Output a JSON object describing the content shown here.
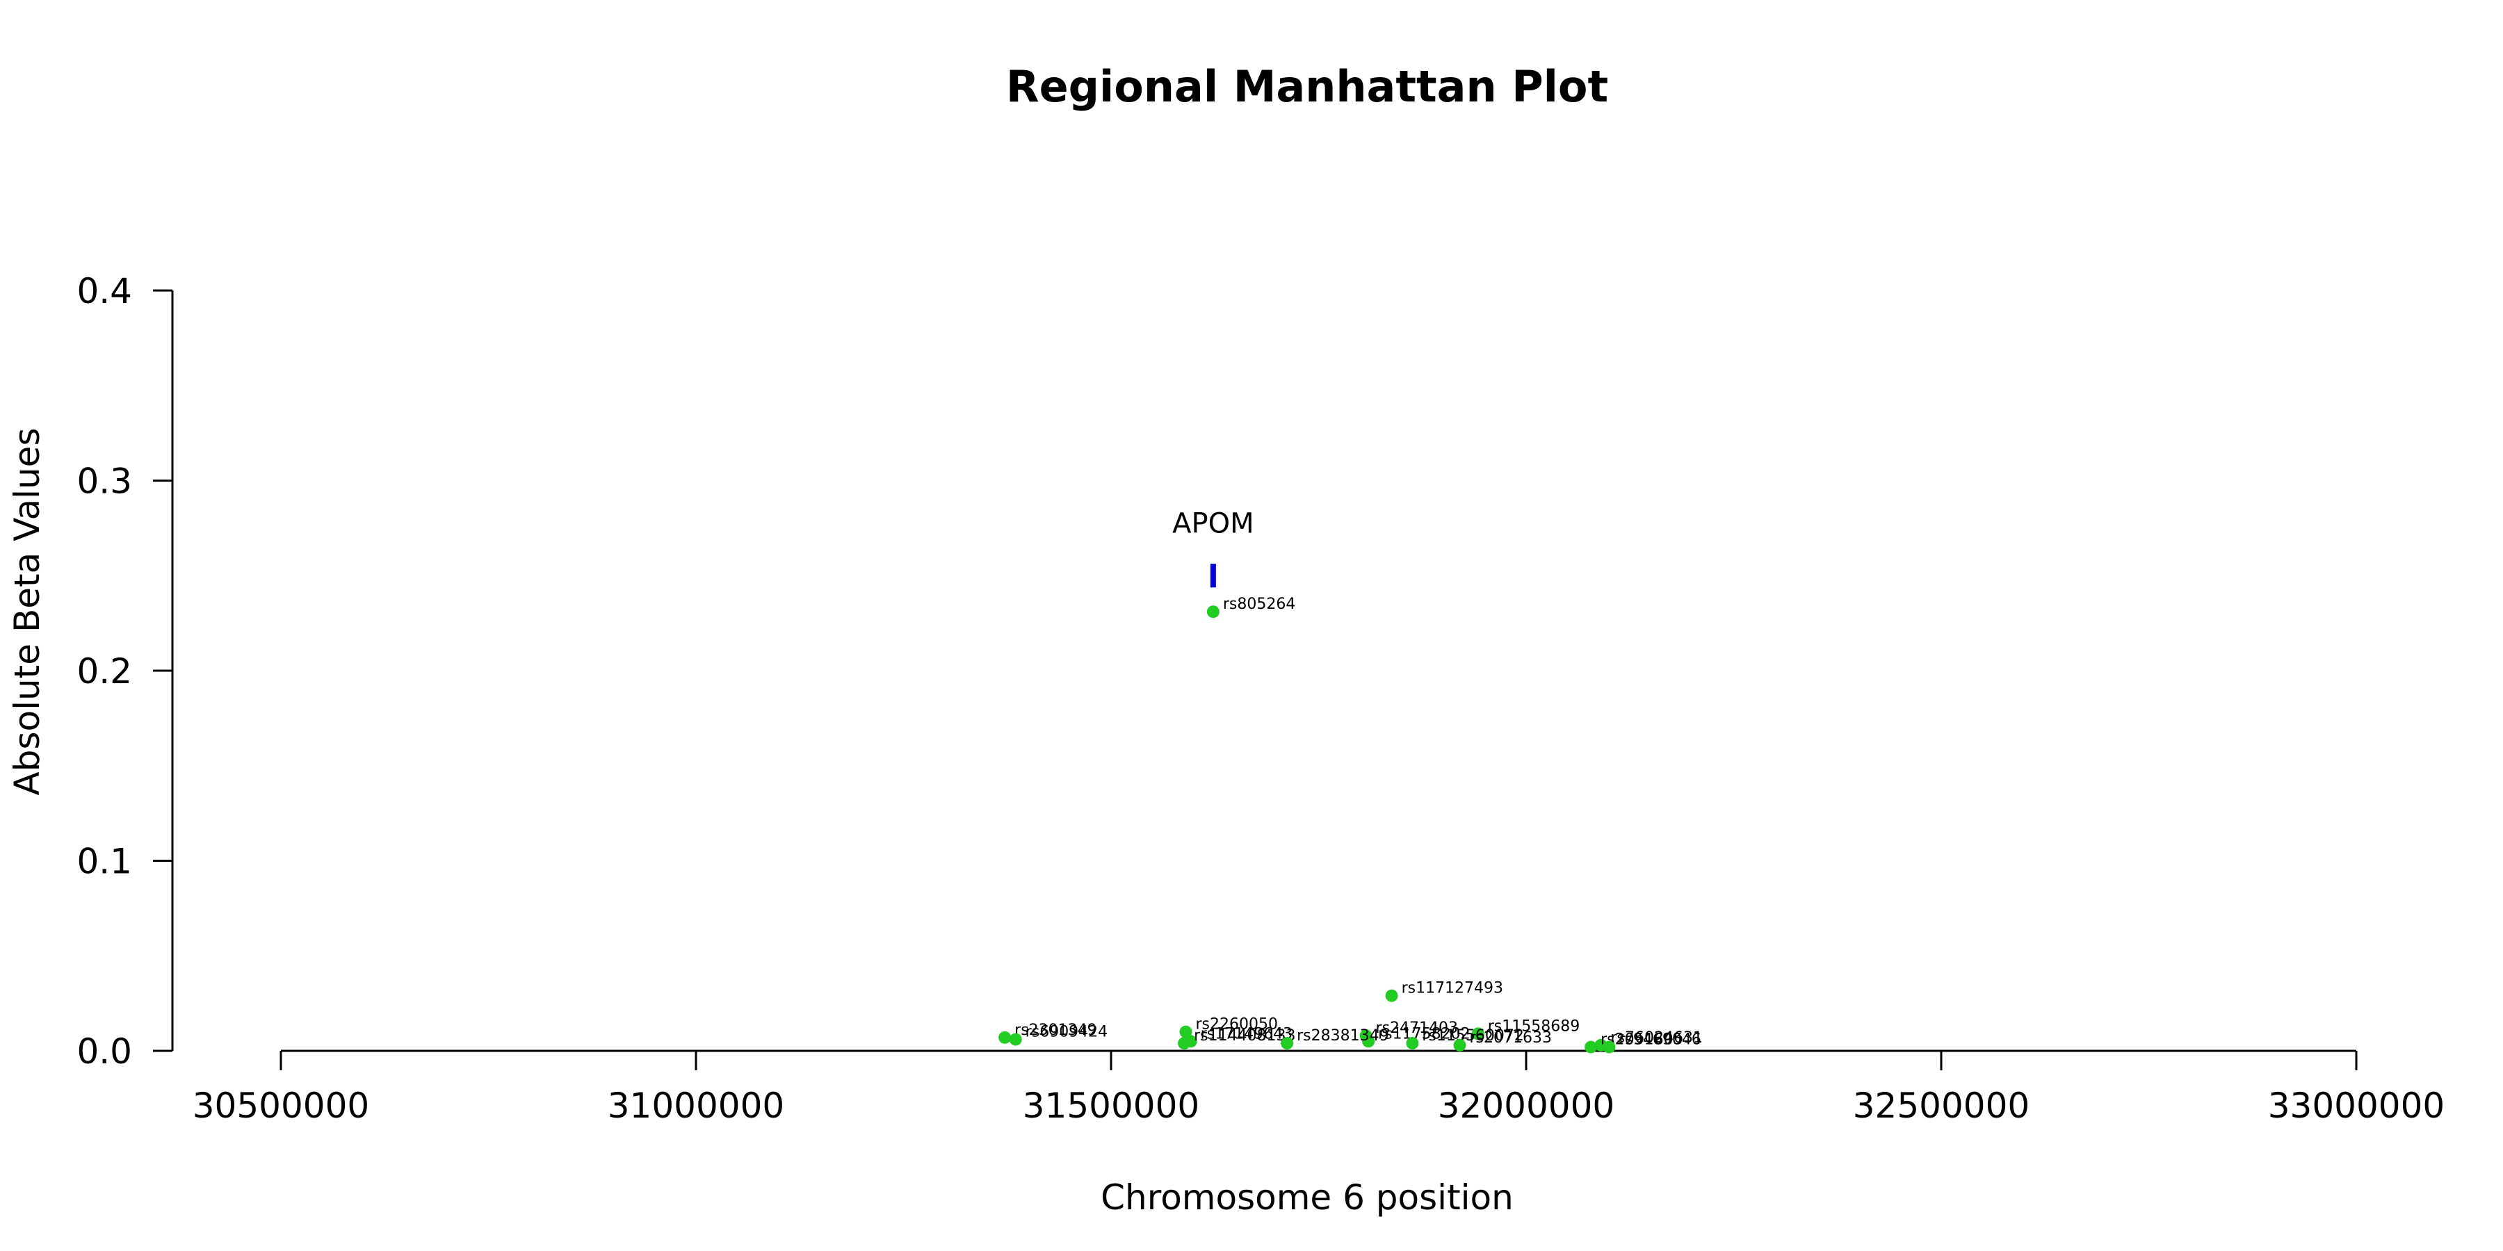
{
  "chart_data": {
    "type": "scatter",
    "title": "Regional Manhattan Plot",
    "xlabel": "Chromosome 6 position",
    "ylabel": "Absolute Beta Values",
    "xlim": [
      30500000,
      33000000
    ],
    "ylim": [
      0,
      0.4
    ],
    "x_ticks": [
      "30500000",
      "31000000",
      "31500000",
      "32000000",
      "32500000",
      "33000000"
    ],
    "y_ticks": [
      "0.0",
      "0.1",
      "0.2",
      "0.3",
      "0.4"
    ],
    "grid": false,
    "point_color": "#22cc22",
    "gene_color": "#0000dd",
    "genes": [
      {
        "name": "APOM",
        "x": 31623000,
        "y": 0.25
      }
    ],
    "points": [
      {
        "label": "rs805264",
        "x": 31623000,
        "y": 0.231
      },
      {
        "label": "rs117127493",
        "x": 31838000,
        "y": 0.029
      },
      {
        "label": "rs2260050",
        "x": 31590000,
        "y": 0.01
      },
      {
        "label": "rs11558689",
        "x": 31942000,
        "y": 0.009
      },
      {
        "label": "rs2471403",
        "x": 31807000,
        "y": 0.008
      },
      {
        "label": "rs2301349",
        "x": 31372000,
        "y": 0.007
      },
      {
        "label": "rs6909424",
        "x": 31385000,
        "y": 0.006
      },
      {
        "label": "rs17149643",
        "x": 31596000,
        "y": 0.005
      },
      {
        "label": "rs11758202",
        "x": 31810000,
        "y": 0.005
      },
      {
        "label": "rs114408133",
        "x": 31588000,
        "y": 0.004
      },
      {
        "label": "rs28381349",
        "x": 31712000,
        "y": 0.004
      },
      {
        "label": "rs115560072",
        "x": 31863000,
        "y": 0.004
      },
      {
        "label": "rs2071633",
        "x": 31920000,
        "y": 0.003
      },
      {
        "label": "rs76024631",
        "x": 32090000,
        "y": 0.003
      },
      {
        "label": "rs2051605",
        "x": 32078000,
        "y": 0.002
      },
      {
        "label": "rs9469046",
        "x": 32100000,
        "y": 0.002
      }
    ]
  }
}
